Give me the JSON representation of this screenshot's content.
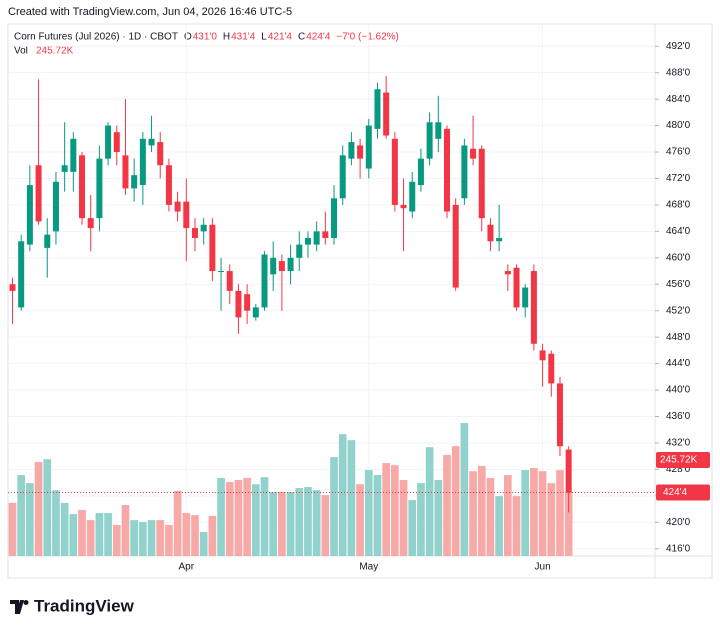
{
  "header": {
    "created": "Created with TradingView.com, Jun 04, 2026 16:46 UTC-5",
    "symbol": "Corn Futures (Jul 2026) · 1D · CBOT",
    "ohlc": [
      {
        "key": "O",
        "value": "431'0"
      },
      {
        "key": "H",
        "value": "431'4"
      },
      {
        "key": "L",
        "value": "421'4"
      },
      {
        "key": "C",
        "value": "424'4"
      }
    ],
    "change": "−7'0 (−1.62%)",
    "vol_label": "Vol",
    "vol_value": "245.72K",
    "logo": "TradingView"
  },
  "chart_data": {
    "type": "candlestick",
    "categories": [
      null,
      null,
      null,
      null,
      null,
      null,
      null,
      null,
      null,
      null,
      null,
      null,
      null,
      null,
      null,
      null,
      null,
      null,
      null,
      null,
      "Apr",
      null,
      null,
      null,
      null,
      null,
      null,
      null,
      null,
      null,
      null,
      null,
      null,
      null,
      null,
      null,
      null,
      null,
      null,
      null,
      null,
      "May",
      null,
      null,
      null,
      null,
      null,
      null,
      null,
      null,
      null,
      null,
      null,
      null,
      null,
      null,
      null,
      null,
      null,
      null,
      null,
      "Jun",
      null,
      null,
      null
    ],
    "open": [
      456,
      452.5,
      462,
      474,
      461.5,
      464,
      473,
      473,
      475.5,
      466,
      466,
      475,
      479,
      475.5,
      470.5,
      471,
      477,
      477.5,
      474,
      468.5,
      468.5,
      464.5,
      464,
      465,
      458,
      458,
      455,
      454.5,
      451,
      452.5,
      457.5,
      459.5,
      458,
      460,
      462,
      462,
      464,
      463,
      469,
      475,
      477,
      473.5,
      479.5,
      485,
      478,
      468,
      467,
      471,
      475,
      478,
      479.5,
      468,
      469,
      476.5,
      476.5,
      465,
      462.5,
      458,
      458.5,
      452.5,
      458,
      446,
      445.5,
      441,
      431
    ],
    "high": [
      457,
      463.5,
      474,
      487,
      466,
      473,
      480.5,
      479,
      476,
      469.5,
      477,
      480.5,
      480,
      484,
      475,
      479,
      481.5,
      479,
      475,
      470,
      472,
      466,
      466,
      466,
      460,
      459,
      456,
      456,
      453,
      461,
      462.5,
      460.5,
      462,
      464,
      464,
      465.5,
      467,
      471,
      477,
      479,
      478,
      481,
      486.5,
      487.5,
      479,
      472,
      473,
      476.5,
      482,
      484.5,
      480,
      469,
      478,
      481.5,
      477,
      466,
      468,
      459,
      459,
      456,
      459,
      447,
      446,
      442,
      431.5
    ],
    "low": [
      450,
      452,
      461,
      465,
      457,
      462,
      470,
      470,
      465,
      461,
      464,
      474,
      474,
      469.5,
      468.5,
      468,
      476,
      472,
      467,
      465.5,
      459.5,
      461,
      462,
      456.5,
      452,
      453,
      448.5,
      450,
      450.5,
      452,
      455,
      452,
      456,
      458,
      460,
      461,
      462,
      462,
      468,
      474,
      472,
      472,
      478,
      478,
      467,
      461,
      466,
      470,
      474,
      476,
      466,
      455,
      468,
      474,
      464,
      461,
      461,
      455,
      452,
      451,
      446,
      440.5,
      439,
      430,
      421.5
    ],
    "close": [
      455,
      462.5,
      471,
      465.5,
      463.5,
      471.5,
      474,
      478,
      466,
      464.5,
      475,
      480,
      476,
      470.5,
      472.5,
      478,
      478,
      474,
      468,
      467,
      464.5,
      463,
      465,
      458,
      458,
      455,
      451,
      452,
      452.5,
      460.5,
      460,
      458,
      460,
      462,
      463,
      464,
      463,
      469,
      475.5,
      477.5,
      475,
      480,
      485.5,
      478.5,
      468,
      467.5,
      471.5,
      475,
      480.5,
      480.5,
      467,
      455.5,
      477,
      475,
      466,
      462.5,
      463,
      457.5,
      452.5,
      455.5,
      447,
      444.5,
      441,
      431.5,
      424.5
    ],
    "volume": [
      204,
      311,
      280,
      361,
      372,
      253,
      204,
      161,
      177,
      138,
      165,
      165,
      119,
      196,
      138,
      131,
      138,
      138,
      119,
      250,
      165,
      157,
      92,
      154,
      300,
      284,
      292,
      300,
      276,
      303,
      246,
      246,
      246,
      261,
      265,
      253,
      234,
      380,
      468,
      445,
      276,
      330,
      311,
      357,
      349,
      292,
      215,
      280,
      418,
      292,
      388,
      422,
      511,
      326,
      346,
      300,
      230,
      311,
      230,
      330,
      338,
      326,
      280,
      330,
      245.72
    ],
    "up_color": "#089981",
    "down_color": "#f23645",
    "volume_up_color": "#92d2cc",
    "volume_down_color": "#f7a9a7",
    "ylim": [
      414.9,
      493.7
    ],
    "yticks": [
      {
        "value": 492,
        "label": "492'0"
      },
      {
        "value": 488,
        "label": "488'0"
      },
      {
        "value": 484,
        "label": "484'0"
      },
      {
        "value": 480,
        "label": "480'0"
      },
      {
        "value": 476,
        "label": "476'0"
      },
      {
        "value": 472,
        "label": "472'0"
      },
      {
        "value": 468,
        "label": "468'0"
      },
      {
        "value": 464,
        "label": "464'0"
      },
      {
        "value": 460,
        "label": "460'0"
      },
      {
        "value": 456,
        "label": "456'0"
      },
      {
        "value": 452,
        "label": "452'0"
      },
      {
        "value": 448,
        "label": "448'0"
      },
      {
        "value": 444,
        "label": "444'0"
      },
      {
        "value": 440,
        "label": "440'0"
      },
      {
        "value": 436,
        "label": "436'0"
      },
      {
        "value": 432,
        "label": "432'0"
      },
      {
        "value": 428,
        "label": "428'0"
      },
      {
        "value": 424,
        "label": "424'0"
      },
      {
        "value": 420,
        "label": "420'0"
      },
      {
        "value": 416,
        "label": "416'0"
      }
    ],
    "last_price": {
      "value": 424.5,
      "label": "424'4"
    },
    "volume_tag": "245.72K",
    "grid": true
  }
}
